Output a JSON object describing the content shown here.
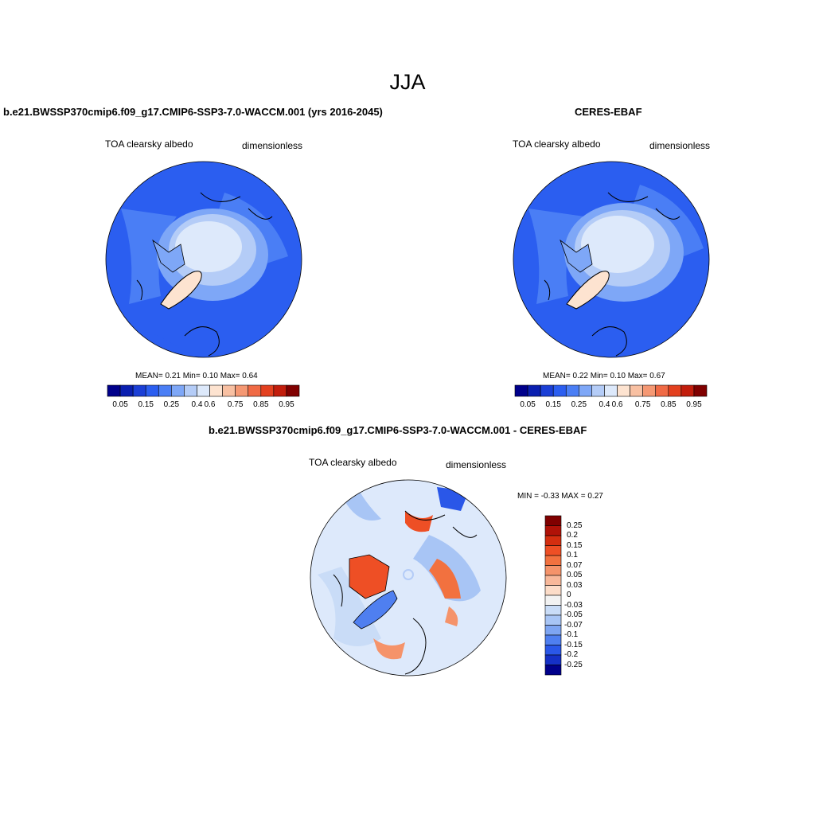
{
  "season_title": "JJA",
  "panels": [
    {
      "id": "model",
      "title": "b.e21.BWSSP370cmip6.f09_g17.CMIP6-SSP3-7.0-WACCM.001 (yrs 2016-2045)",
      "variable": "TOA clearsky albedo",
      "units": "dimensionless",
      "stats": "MEAN=   0.21  Min=   0.10  Max=   0.64"
    },
    {
      "id": "obs",
      "title": "CERES-EBAF",
      "variable": "TOA clearsky albedo",
      "units": "dimensionless",
      "stats": "MEAN=   0.22  Min=   0.10  Max=   0.67"
    },
    {
      "id": "diff",
      "title": "b.e21.BWSSP370cmip6.f09_g17.CMIP6-SSP3-7.0-WACCM.001 - CERES-EBAF",
      "variable": "TOA clearsky albedo",
      "units": "dimensionless",
      "stats": "MIN =  -0.33 MAX =   0.27"
    }
  ],
  "colorbar_abs": {
    "labels": [
      "0.05",
      "0.15",
      "0.25",
      "0.4",
      "0.6",
      "0.75",
      "0.85",
      "0.95"
    ],
    "colors": [
      "#00008b",
      "#0a1fb0",
      "#1b3fd6",
      "#2b5ef0",
      "#4a7ef5",
      "#7ea7f7",
      "#b4ccf7",
      "#dde9fb",
      "#fde3d0",
      "#f8c0a2",
      "#f59873",
      "#f06a45",
      "#e3401f",
      "#c21d0c",
      "#800000"
    ]
  },
  "colorbar_diff": {
    "labels": [
      "0.25",
      "0.2",
      "0.15",
      "0.1",
      "0.07",
      "0.05",
      "0.03",
      "0",
      "-0.03",
      "-0.05",
      "-0.07",
      "-0.1",
      "-0.15",
      "-0.2",
      "-0.25"
    ],
    "colors": [
      "#800000",
      "#b01208",
      "#d42e10",
      "#ee4f25",
      "#f2713f",
      "#f5936a",
      "#f8b89a",
      "#fcdcc8",
      "#f2f2f2",
      "#c9dcf7",
      "#a8c5f5",
      "#7ea5f2",
      "#4f7ff0",
      "#2a57e8",
      "#1530c6",
      "#00008b"
    ]
  },
  "map_colors": {
    "ocean_low": "#2b5ef0",
    "ocean_mid": "#4a7ef5",
    "ice_light": "#b4ccf7",
    "ice_pale": "#dde9fb",
    "greenland": "#fde3d0",
    "diff_bg": "#dde9fb",
    "diff_neg": "#a8c5f5",
    "diff_pos": "#ee4f25",
    "diff_strong_neg": "#2a57e8"
  }
}
